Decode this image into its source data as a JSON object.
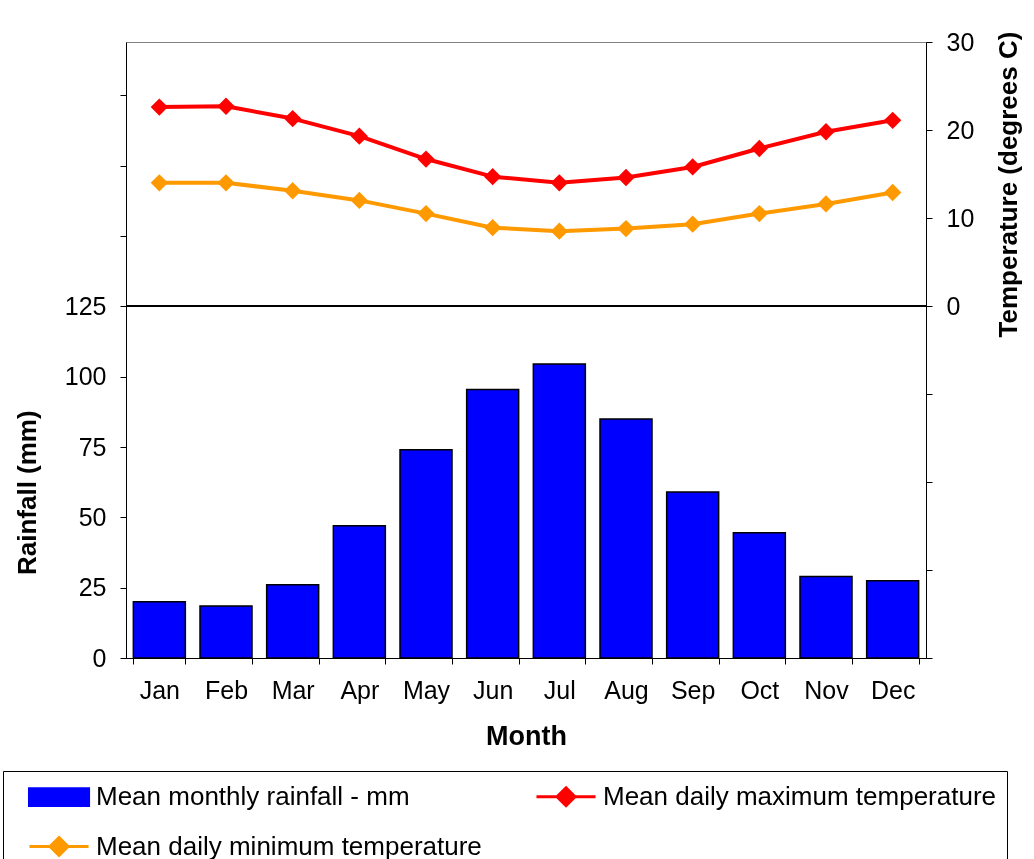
{
  "chart_data": {
    "type": "bar",
    "xlabel": "Month",
    "ylabel": "Rainfall (mm)",
    "y2label": "Temperature (degrees C)",
    "categories": [
      "Jan",
      "Feb",
      "Mar",
      "Apr",
      "May",
      "Jun",
      "Jul",
      "Aug",
      "Sep",
      "Oct",
      "Nov",
      "Dec"
    ],
    "series": [
      {
        "name": "Mean monthly rainfall - mm",
        "color": "#0000ff",
        "values": [
          20,
          18.5,
          26,
          47,
          74,
          95.5,
          104.5,
          85,
          59,
          44.5,
          29,
          27.5
        ]
      },
      {
        "name": "Mean daily maximum temperature",
        "type": "line",
        "axis": "y2",
        "color": "#ff0000",
        "values": [
          22.6,
          22.7,
          21.3,
          19.3,
          16.7,
          14.7,
          14.0,
          14.6,
          15.8,
          17.9,
          19.8,
          21.1
        ]
      },
      {
        "name": "Mean daily minimum temperature",
        "type": "line",
        "axis": "y2",
        "color": "#ff9900",
        "values": [
          14.0,
          14.0,
          13.1,
          12.0,
          10.5,
          8.9,
          8.5,
          8.8,
          9.3,
          10.5,
          11.6,
          12.9
        ]
      }
    ],
    "ylim": [
      0,
      219
    ],
    "yticks": [
      0,
      25,
      50,
      75,
      100,
      125,
      {
        "value": 150,
        "label": null
      },
      {
        "value": 175,
        "label": null
      },
      {
        "value": 200,
        "label": null
      }
    ],
    "y2lim": [
      -40,
      30
    ],
    "y2ticks": [
      {
        "value": -40,
        "label": null
      },
      {
        "value": -30,
        "label": null
      },
      {
        "value": -20,
        "label": null
      },
      {
        "value": -10,
        "label": null
      },
      0,
      10,
      20,
      30
    ],
    "ref_lines": [
      {
        "axis": "y2",
        "value": 0,
        "color": "#000000"
      }
    ],
    "marker": "diamond",
    "line_style": "solid",
    "grid": false,
    "legend": "bottom"
  }
}
